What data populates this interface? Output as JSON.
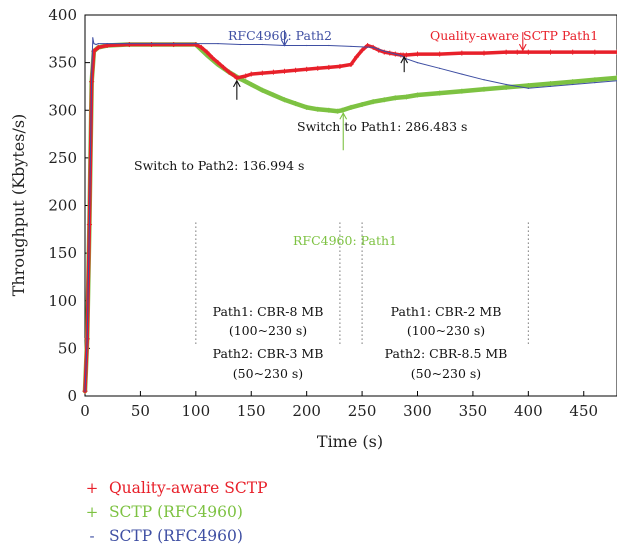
{
  "chart_data": {
    "type": "line",
    "xlabel": "Time (s)",
    "ylabel": "Throughput (Kbytes/s)",
    "xlim": [
      0,
      480
    ],
    "ylim": [
      0,
      400
    ],
    "xticks": [
      0,
      50,
      100,
      150,
      200,
      250,
      300,
      350,
      400,
      450
    ],
    "yticks": [
      0,
      50,
      100,
      150,
      200,
      250,
      300,
      350,
      400
    ],
    "grid": false,
    "legend_position": "bottom-left",
    "series": [
      {
        "name": "Quality-aware SCTP",
        "marker": "+",
        "color": "#e8202a",
        "x": [
          0,
          2,
          4,
          6,
          8,
          12,
          20,
          40,
          60,
          80,
          100,
          105,
          110,
          115,
          120,
          125,
          130,
          135,
          137,
          145,
          150,
          160,
          170,
          180,
          190,
          200,
          210,
          220,
          230,
          240,
          245,
          250,
          255,
          260,
          265,
          270,
          275,
          280,
          285,
          287,
          290,
          300,
          320,
          340,
          360,
          380,
          390,
          400,
          420,
          440,
          460,
          480
        ],
        "y": [
          5,
          60,
          180,
          330,
          362,
          366,
          368,
          369,
          369,
          369,
          369,
          366,
          361,
          355,
          350,
          345,
          340,
          336,
          334,
          336,
          338,
          339,
          340,
          341,
          342,
          343,
          344,
          345,
          346,
          348,
          356,
          363,
          368,
          366,
          363,
          361,
          360,
          359,
          358,
          358,
          358,
          359,
          359,
          360,
          360,
          361,
          361,
          361,
          361,
          361,
          361,
          361
        ]
      },
      {
        "name": "SCTP (RFC4960)",
        "marker": "+",
        "color": "#7dc242",
        "x": [
          0,
          2,
          4,
          6,
          8,
          12,
          20,
          40,
          60,
          80,
          100,
          110,
          120,
          130,
          140,
          150,
          160,
          170,
          180,
          190,
          200,
          210,
          220,
          228,
          232,
          240,
          250,
          260,
          270,
          280,
          290,
          300,
          320,
          340,
          360,
          380,
          400,
          420,
          440,
          460,
          480
        ],
        "y": [
          5,
          60,
          180,
          330,
          362,
          366,
          368,
          369,
          369,
          369,
          369,
          358,
          348,
          340,
          333,
          327,
          321,
          316,
          311,
          307,
          303,
          301,
          300,
          299,
          300,
          303,
          306,
          309,
          311,
          313,
          314,
          316,
          318,
          320,
          322,
          324,
          326,
          328,
          330,
          332,
          334
        ]
      },
      {
        "name": "SCTP (RFC4960)",
        "marker": "-",
        "color": "#3f4fa3",
        "x": [
          0,
          2,
          4,
          6,
          7,
          8,
          10,
          12,
          20,
          40,
          60,
          80,
          100,
          120,
          140,
          160,
          180,
          200,
          220,
          240,
          260,
          270,
          280,
          286,
          290,
          300,
          320,
          340,
          360,
          380,
          400,
          420,
          440,
          460,
          480
        ],
        "y": [
          5,
          60,
          180,
          340,
          376,
          370,
          369,
          370,
          370,
          370,
          370,
          370,
          370,
          370,
          369,
          369,
          368,
          368,
          368,
          367,
          366,
          362,
          359,
          357,
          354,
          350,
          344,
          338,
          332,
          327,
          323,
          325,
          327,
          329,
          331
        ]
      }
    ],
    "annotations": {
      "path2_label": "RFC4960: Path2",
      "quality_path1_label": "Quality-aware SCTP Path1",
      "switch1": "Switch to Path1: 286.483 s",
      "switch2": "Switch to Path2: 136.994 s",
      "path1_label": "RFC4960: Path1",
      "box1_l1": "Path1: CBR-8 MB",
      "box1_l2": "(100~230 s)",
      "box1_l3": "Path2: CBR-3 MB",
      "box1_l4": "(50~230 s)",
      "box2_l1": "Path1: CBR-2 MB",
      "box2_l2": "(100~230 s)",
      "box2_l3": "Path2: CBR-8.5 MB",
      "box2_l4": "(50~230 s)"
    },
    "vlines": [
      100,
      230,
      250,
      400
    ]
  },
  "legend": {
    "items": [
      {
        "symbol": "+",
        "label": "Quality-aware SCTP",
        "color": "#e8202a"
      },
      {
        "symbol": "+",
        "label": "SCTP (RFC4960)",
        "color": "#7dc242"
      },
      {
        "symbol": "-",
        "label": "SCTP (RFC4960)",
        "color": "#3f4fa3"
      }
    ]
  }
}
